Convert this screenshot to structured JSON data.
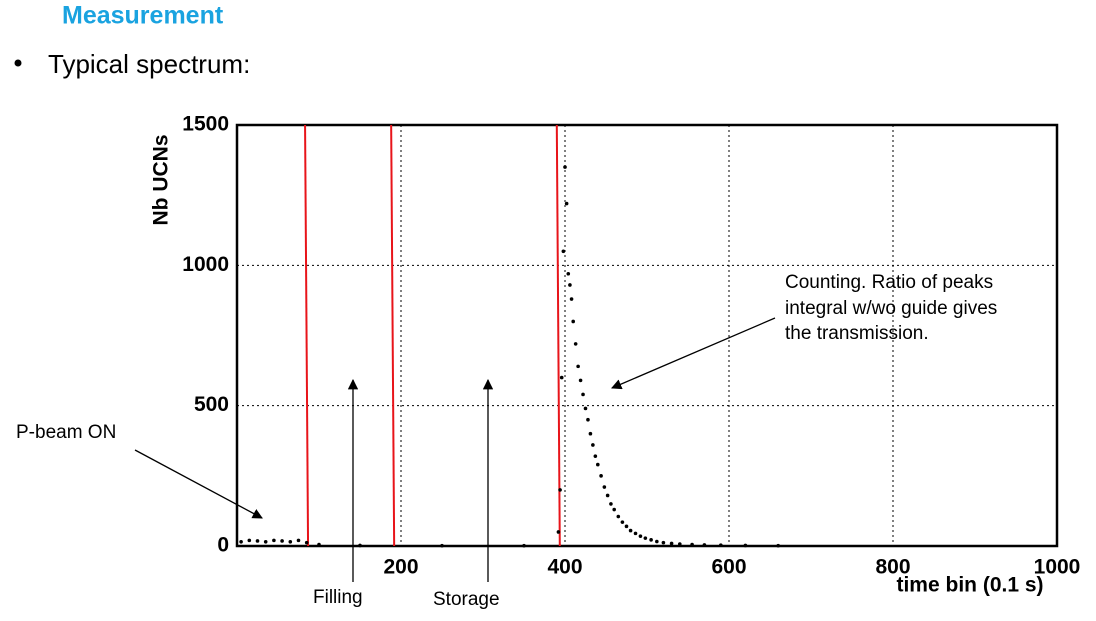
{
  "slide": {
    "title": "Measurement",
    "bullet": "Typical spectrum:"
  },
  "chart_data": {
    "type": "scatter",
    "ylabel": "Nb UCNs",
    "xlabel": "time bin (0.1 s)",
    "xlim": [
      0,
      1000
    ],
    "ylim": [
      0,
      1500
    ],
    "xticks": [
      200,
      400,
      600,
      800,
      1000
    ],
    "yticks": [
      0,
      500,
      1000,
      1500
    ],
    "grid": true,
    "color": "#000000",
    "vlines": [
      83,
      188,
      390
    ],
    "vline_color": "#e8141a",
    "x": [
      5,
      15,
      25,
      35,
      45,
      55,
      65,
      75,
      85,
      100,
      150,
      250,
      350,
      392,
      394,
      396,
      398,
      400,
      402,
      404,
      406,
      408,
      410,
      413,
      416,
      419,
      422,
      425,
      428,
      431,
      434,
      437,
      440,
      444,
      448,
      452,
      456,
      460,
      465,
      470,
      475,
      480,
      486,
      492,
      498,
      505,
      512,
      520,
      530,
      540,
      555,
      570,
      590,
      620,
      660
    ],
    "values": [
      15,
      20,
      18,
      15,
      20,
      18,
      15,
      20,
      12,
      5,
      2,
      1,
      1,
      50,
      200,
      600,
      1050,
      1350,
      1220,
      970,
      930,
      880,
      800,
      720,
      640,
      590,
      540,
      490,
      450,
      400,
      360,
      320,
      290,
      250,
      210,
      180,
      150,
      130,
      105,
      85,
      70,
      55,
      45,
      35,
      28,
      22,
      16,
      12,
      9,
      7,
      5,
      4,
      3,
      2,
      1
    ],
    "annotations": {
      "p_beam": "P-beam ON",
      "filling": "Filling",
      "storage": "Storage",
      "counting": [
        "Counting. Ratio of peaks",
        "integral w/wo guide gives",
        "the transmission."
      ]
    }
  }
}
